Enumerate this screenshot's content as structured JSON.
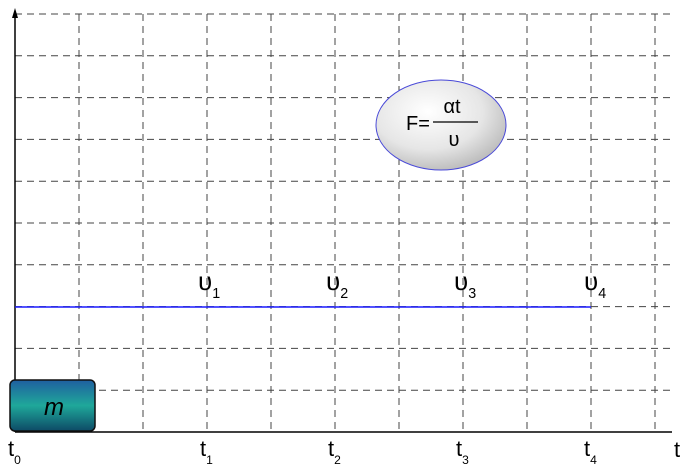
{
  "formula": {
    "lhs": "F=",
    "numerator": "αt",
    "denominator": "υ"
  },
  "velocities": [
    {
      "symbol": "υ",
      "subscript": "1"
    },
    {
      "symbol": "υ",
      "subscript": "2"
    },
    {
      "symbol": "υ",
      "subscript": "3"
    },
    {
      "symbol": "υ",
      "subscript": "4"
    }
  ],
  "times": [
    {
      "symbol": "t",
      "subscript": "0"
    },
    {
      "symbol": "t",
      "subscript": "1"
    },
    {
      "symbol": "t",
      "subscript": "2"
    },
    {
      "symbol": "t",
      "subscript": "3"
    },
    {
      "symbol": "t",
      "subscript": "4"
    }
  ],
  "axis_label": "t",
  "mass": "m"
}
